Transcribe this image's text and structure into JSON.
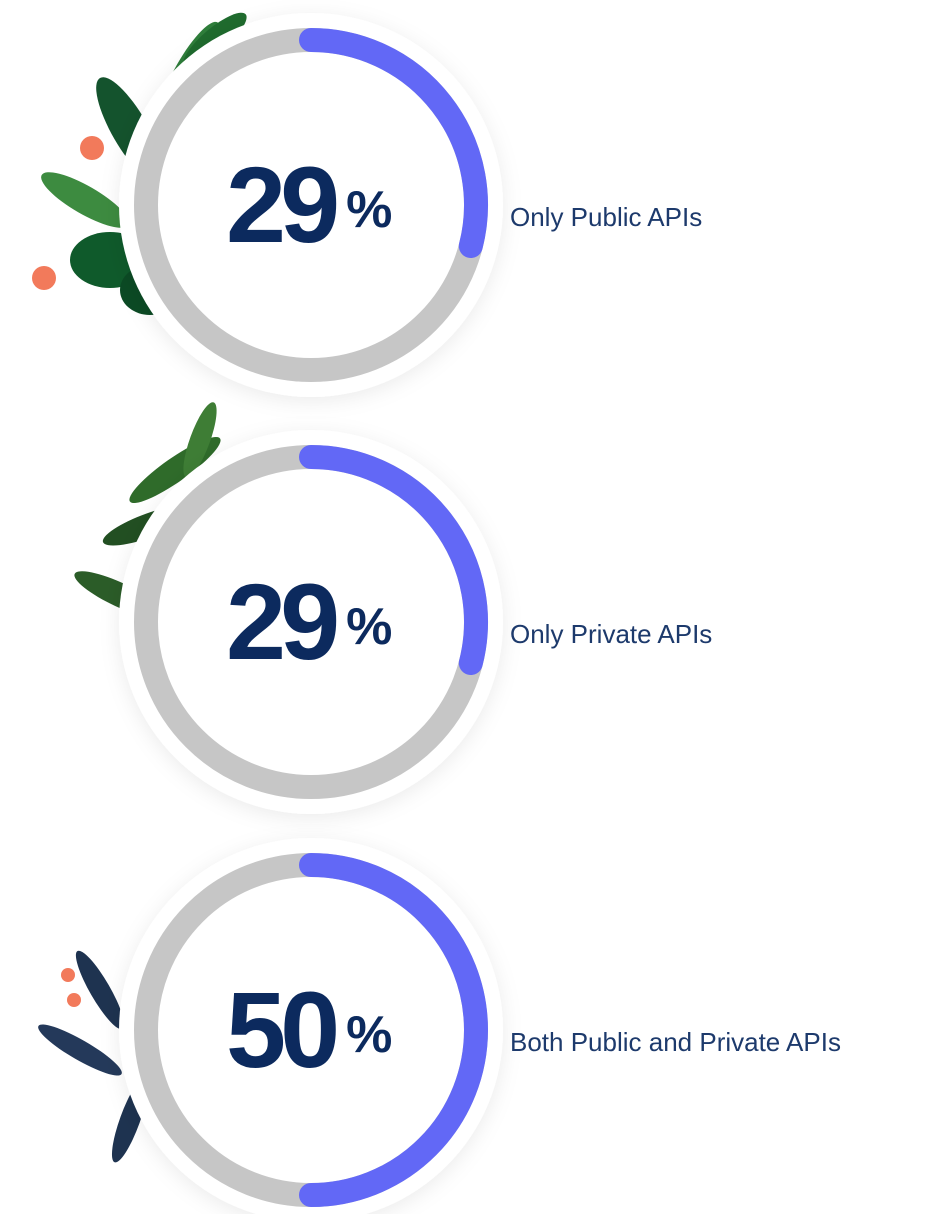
{
  "chart_data": [
    {
      "type": "donut",
      "value": 29,
      "unit": "%",
      "label": "Only Public APIs",
      "ylim": [
        0,
        100
      ],
      "color": "#6268f6",
      "track_color": "#c6c6c6"
    },
    {
      "type": "donut",
      "value": 29,
      "unit": "%",
      "label": "Only Private APIs",
      "ylim": [
        0,
        100
      ],
      "color": "#6268f6",
      "track_color": "#c6c6c6"
    },
    {
      "type": "donut",
      "value": 50,
      "unit": "%",
      "label": "Both Public and Private APIs",
      "ylim": [
        0,
        100
      ],
      "color": "#6268f6",
      "track_color": "#c6c6c6"
    }
  ]
}
